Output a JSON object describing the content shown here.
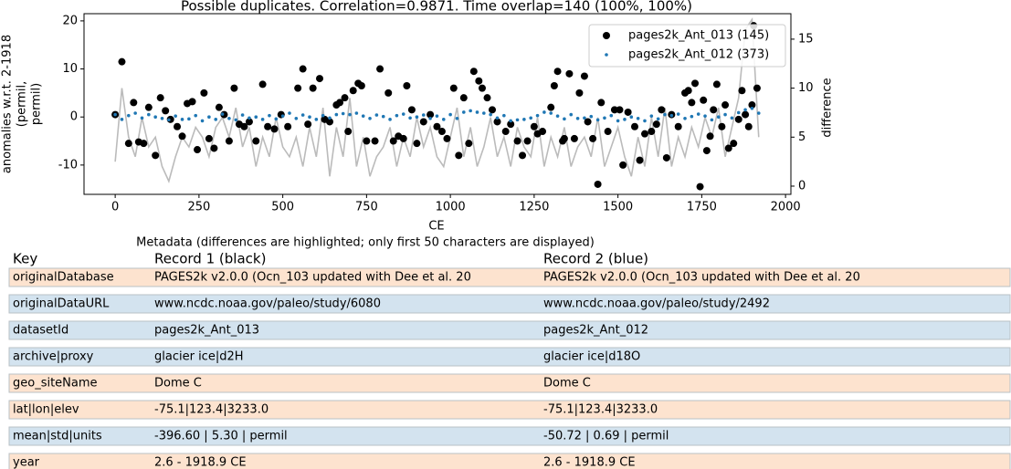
{
  "chart_data": {
    "type": "scatter",
    "title": "Possible duplicates. Correlation=0.9871. Time overlap=140 (100%, 100%)",
    "xlabel": "CE",
    "ylabel": [
      "anomalies w.r.t. 2-1918",
      "(permil,",
      "permil)"
    ],
    "y2label": "difference",
    "xlim": [
      -93,
      2016
    ],
    "xticks": [
      0,
      250,
      500,
      750,
      1000,
      1250,
      1500,
      1750,
      2000
    ],
    "ylim": [
      -16.1,
      21.5
    ],
    "yticks": [
      -10,
      0,
      10,
      20
    ],
    "y2lim": [
      -0.84,
      17.6
    ],
    "y2ticks": [
      0,
      5,
      10,
      15
    ],
    "legend": "upper right",
    "series": [
      {
        "type": "line",
        "axis": "y2",
        "color": "#bbbbbb",
        "x": [
          0,
          20,
          40,
          60,
          80,
          100,
          120,
          140,
          160,
          180,
          200,
          220,
          240,
          260,
          280,
          300,
          320,
          340,
          360,
          380,
          400,
          420,
          440,
          460,
          480,
          500,
          520,
          540,
          560,
          580,
          600,
          620,
          640,
          660,
          680,
          700,
          720,
          740,
          760,
          780,
          800,
          820,
          840,
          860,
          880,
          900,
          920,
          940,
          960,
          980,
          1000,
          1020,
          1040,
          1060,
          1080,
          1100,
          1120,
          1140,
          1160,
          1180,
          1200,
          1220,
          1240,
          1260,
          1280,
          1300,
          1320,
          1340,
          1360,
          1380,
          1400,
          1420,
          1440,
          1460,
          1480,
          1500,
          1520,
          1540,
          1560,
          1580,
          1600,
          1620,
          1640,
          1660,
          1680,
          1700,
          1720,
          1740,
          1760,
          1780,
          1800,
          1820,
          1840,
          1860,
          1880,
          1900,
          1920
        ],
        "values": [
          2.5,
          10,
          5,
          3,
          7,
          4,
          5,
          2,
          0.5,
          3,
          5,
          4,
          6,
          5,
          3,
          6,
          7,
          5,
          8,
          4,
          6,
          2,
          5,
          3,
          7,
          4,
          3,
          5,
          2,
          6,
          3,
          8,
          1,
          6,
          3,
          9,
          2,
          5,
          1,
          3,
          4,
          6,
          2,
          5,
          3,
          7,
          4,
          6,
          3,
          2,
          5,
          8,
          3,
          6,
          2,
          4,
          7,
          3,
          5,
          2,
          6,
          4,
          3,
          7,
          2,
          5,
          3,
          6,
          2,
          4,
          5,
          3,
          7,
          2,
          4,
          6,
          3,
          1,
          5,
          2,
          7,
          3,
          8,
          2,
          5,
          3,
          6,
          4,
          7,
          5,
          8,
          3,
          6,
          9,
          16,
          17,
          5
        ]
      },
      {
        "name": "pages2k_Ant_013 (145)",
        "color": "#000000",
        "marker_size": 4,
        "x": [
          0,
          20,
          40,
          55,
          70,
          85,
          100,
          120,
          135,
          150,
          165,
          185,
          200,
          215,
          230,
          245,
          265,
          280,
          295,
          310,
          325,
          340,
          355,
          370,
          385,
          400,
          420,
          440,
          455,
          475,
          495,
          515,
          545,
          560,
          575,
          590,
          610,
          625,
          640,
          660,
          670,
          685,
          695,
          710,
          725,
          735,
          750,
          775,
          790,
          815,
          830,
          845,
          860,
          870,
          885,
          900,
          920,
          940,
          960,
          975,
          990,
          1010,
          1025,
          1040,
          1055,
          1070,
          1085,
          1095,
          1110,
          1125,
          1140,
          1165,
          1180,
          1200,
          1215,
          1230,
          1250,
          1260,
          1275,
          1300,
          1310,
          1320,
          1335,
          1340,
          1355,
          1370,
          1385,
          1400,
          1410,
          1425,
          1440,
          1450,
          1470,
          1490,
          1505,
          1515,
          1530,
          1550,
          1565,
          1580,
          1600,
          1615,
          1630,
          1645,
          1660,
          1680,
          1700,
          1710,
          1720,
          1730,
          1745,
          1755,
          1765,
          1775,
          1785,
          1795,
          1810,
          1820,
          1830,
          1845,
          1860,
          1870,
          1880,
          1890,
          1900,
          1905,
          1915
        ],
        "values": [
          0.5,
          11.5,
          -5.5,
          3,
          -5.2,
          -5.5,
          2,
          -8,
          4,
          1.3,
          -0.5,
          -2,
          -4,
          2.8,
          3.2,
          -6.8,
          5,
          -4.5,
          -6.5,
          2,
          0.5,
          -5,
          6,
          -1.5,
          -2,
          -1,
          -5,
          6.8,
          -2,
          -2.5,
          0.5,
          -2,
          6,
          10,
          -1.5,
          6,
          8,
          -0.5,
          -1,
          2.5,
          3,
          4,
          -3,
          5.5,
          7,
          6.5,
          -5,
          -5,
          10,
          5,
          -5,
          -4,
          -4.5,
          6.5,
          1.5,
          -5.5,
          -1,
          0.5,
          -2,
          -3,
          -4.5,
          6,
          -8,
          4,
          -5.5,
          9.5,
          7.5,
          6,
          4,
          1.5,
          -1,
          -3,
          -1.5,
          -5,
          -8,
          -5,
          -2,
          -3.5,
          -3,
          2,
          6.5,
          9.5,
          -5,
          -4.5,
          9,
          -4.5,
          5,
          8.5,
          -1,
          -4.5,
          -14,
          3,
          -3,
          1.5,
          1.5,
          -10,
          1,
          -2,
          -9,
          -3.5,
          -3,
          -1.5,
          1.5,
          -8.5,
          0.5,
          -2,
          5,
          5.5,
          3,
          7,
          -14.5,
          3.5,
          -7,
          -4,
          1.5,
          6.8,
          -2,
          2.5,
          -6.5,
          -5.5,
          -0.5,
          5.5,
          0.5,
          -2,
          2.5,
          19,
          6
        ]
      },
      {
        "name": "pages2k_Ant_012 (373)",
        "color": "#1f77b4",
        "marker_size": 1.8,
        "x": [
          0,
          20,
          40,
          60,
          80,
          100,
          120,
          140,
          160,
          180,
          200,
          220,
          240,
          260,
          280,
          300,
          320,
          340,
          360,
          380,
          400,
          420,
          440,
          460,
          480,
          500,
          520,
          540,
          560,
          580,
          600,
          620,
          640,
          660,
          680,
          700,
          720,
          740,
          760,
          780,
          800,
          820,
          840,
          860,
          880,
          900,
          920,
          940,
          960,
          980,
          1000,
          1020,
          1040,
          1060,
          1080,
          1100,
          1120,
          1140,
          1160,
          1180,
          1200,
          1220,
          1240,
          1260,
          1280,
          1300,
          1320,
          1340,
          1360,
          1380,
          1400,
          1420,
          1440,
          1460,
          1480,
          1500,
          1520,
          1540,
          1560,
          1580,
          1600,
          1620,
          1640,
          1660,
          1680,
          1700,
          1720,
          1740,
          1760,
          1780,
          1800,
          1820,
          1840,
          1860,
          1880,
          1900,
          1920
        ],
        "values": [
          0.5,
          -0.5,
          0.3,
          0.8,
          -0.2,
          0.5,
          0,
          -0.3,
          -0.6,
          0.2,
          -0.5,
          -0.4,
          0.3,
          -0.8,
          0,
          -0.5,
          0.6,
          -0.3,
          -0.6,
          0.4,
          -0.2,
          0,
          -0.5,
          0.3,
          -0.4,
          0.2,
          0.8,
          -0.3,
          0.4,
          0,
          -0.5,
          0.3,
          -0.2,
          0.5,
          0.7,
          0.5,
          0.8,
          0.2,
          -0.3,
          0.4,
          0.1,
          -0.5,
          0.3,
          0.6,
          -0.2,
          0,
          0.4,
          -0.3,
          0.2,
          -0.5,
          0.5,
          -0.3,
          1,
          1.3,
          1,
          0.8,
          0.5,
          -0.2,
          0.3,
          -0.8,
          -0.6,
          -0.5,
          -0.2,
          0.3,
          1,
          0.8,
          0.2,
          -0.4,
          0.5,
          -0.3,
          -0.2,
          0.1,
          -0.6,
          -0.2,
          0.3,
          -0.8,
          -0.5,
          0,
          -0.3,
          -0.8,
          0.2,
          -0.4,
          0.5,
          0.3,
          0.6,
          -0.3,
          0.1,
          0.6,
          0.2,
          -0.6,
          0,
          0.5,
          -0.2,
          0.9,
          1.5,
          1.8,
          0.8
        ]
      }
    ]
  },
  "table": {
    "caption": "Metadata (differences are highlighted; only first 50 characters are displayed)",
    "header": [
      "Key",
      "Record 1 (black)",
      "Record 2 (blue)"
    ],
    "row_colors": [
      "#fde3cf",
      "#d3e3ef",
      "#d3e3ef",
      "#d3e3ef",
      "#fde3cf",
      "#fde3cf",
      "#d3e3ef",
      "#fde3cf"
    ],
    "rows": [
      [
        "originalDatabase",
        "PAGES2k v2.0.0 (Ocn_103 updated with Dee et al. 20",
        "PAGES2k v2.0.0 (Ocn_103 updated with Dee et al. 20"
      ],
      [
        "originalDataURL",
        "www.ncdc.noaa.gov/paleo/study/6080",
        "www.ncdc.noaa.gov/paleo/study/2492"
      ],
      [
        "datasetId",
        "pages2k_Ant_013",
        "pages2k_Ant_012"
      ],
      [
        "archive|proxy",
        "glacier ice|d2H",
        "glacier ice|d18O"
      ],
      [
        "geo_siteName",
        "Dome C",
        "Dome C"
      ],
      [
        "lat|lon|elev",
        "-75.1|123.4|3233.0",
        "-75.1|123.4|3233.0"
      ],
      [
        "mean|std|units",
        "-396.60 | 5.30 | permil",
        "-50.72 | 0.69 | permil"
      ],
      [
        "year",
        "2.6 - 1918.9 CE",
        "2.6 - 1918.9 CE"
      ]
    ]
  }
}
